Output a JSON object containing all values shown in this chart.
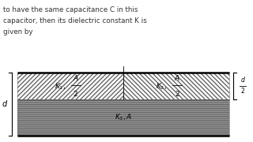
{
  "text_top1": "to have the same capacitance C in this",
  "text_top2": "capacitor, then its dielectric constant K is",
  "text_top3": "given by",
  "bg_color": "#ffffff",
  "fig_width": 3.2,
  "fig_height": 1.8,
  "dpi": 100
}
